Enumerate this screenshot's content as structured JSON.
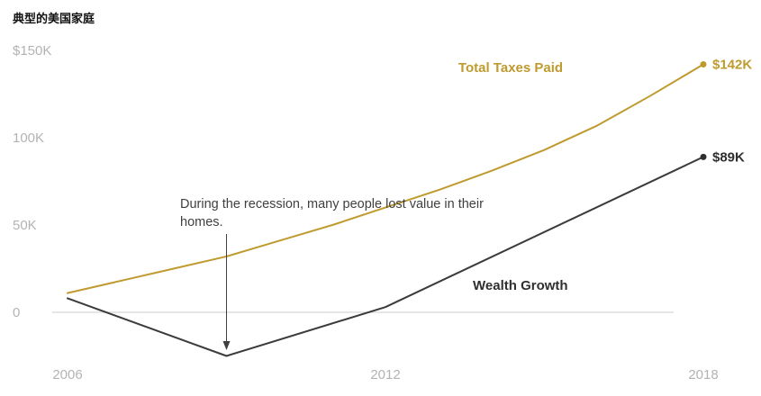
{
  "chart_data": {
    "type": "line",
    "title": "典型的美国家庭",
    "xlabel": "",
    "ylabel": "",
    "xlim": [
      2006,
      2018
    ],
    "ylim": [
      -32,
      152
    ],
    "grid": "zero-line-only",
    "legend_position": "inline-labels",
    "yticks": [
      {
        "value": 150,
        "label": "$150K"
      },
      {
        "value": 100,
        "label": "100K"
      },
      {
        "value": 50,
        "label": "50K"
      },
      {
        "value": 0,
        "label": "0"
      }
    ],
    "xticks": [
      {
        "value": 2006,
        "label": "2006"
      },
      {
        "value": 2012,
        "label": "2012"
      },
      {
        "value": 2018,
        "label": "2018"
      }
    ],
    "series": [
      {
        "name": "Total Taxes Paid",
        "color": "#bf9b2f",
        "x": [
          2006,
          2007,
          2008,
          2009,
          2010,
          2011,
          2012,
          2013,
          2014,
          2015,
          2016,
          2017,
          2018
        ],
        "values": [
          11,
          18,
          25,
          32,
          41,
          50,
          60,
          70,
          81,
          93,
          107,
          124,
          142
        ],
        "end_label": "$142K"
      },
      {
        "name": "Wealth Growth",
        "color": "#3b3b3b",
        "x": [
          2006,
          2009,
          2012,
          2018
        ],
        "values": [
          8,
          -25,
          3,
          89
        ],
        "end_label": "$89K"
      }
    ],
    "annotation": {
      "lines": [
        "During the recession, many people lost value in their",
        "homes."
      ],
      "arrow_target_year": 2009
    }
  },
  "colors": {
    "tick_label": "#b3b3b3",
    "zero_line": "#dddddd",
    "annotation_text": "#3f3f3f",
    "wealth_label": "#2f2f2f",
    "title": "#111111"
  }
}
